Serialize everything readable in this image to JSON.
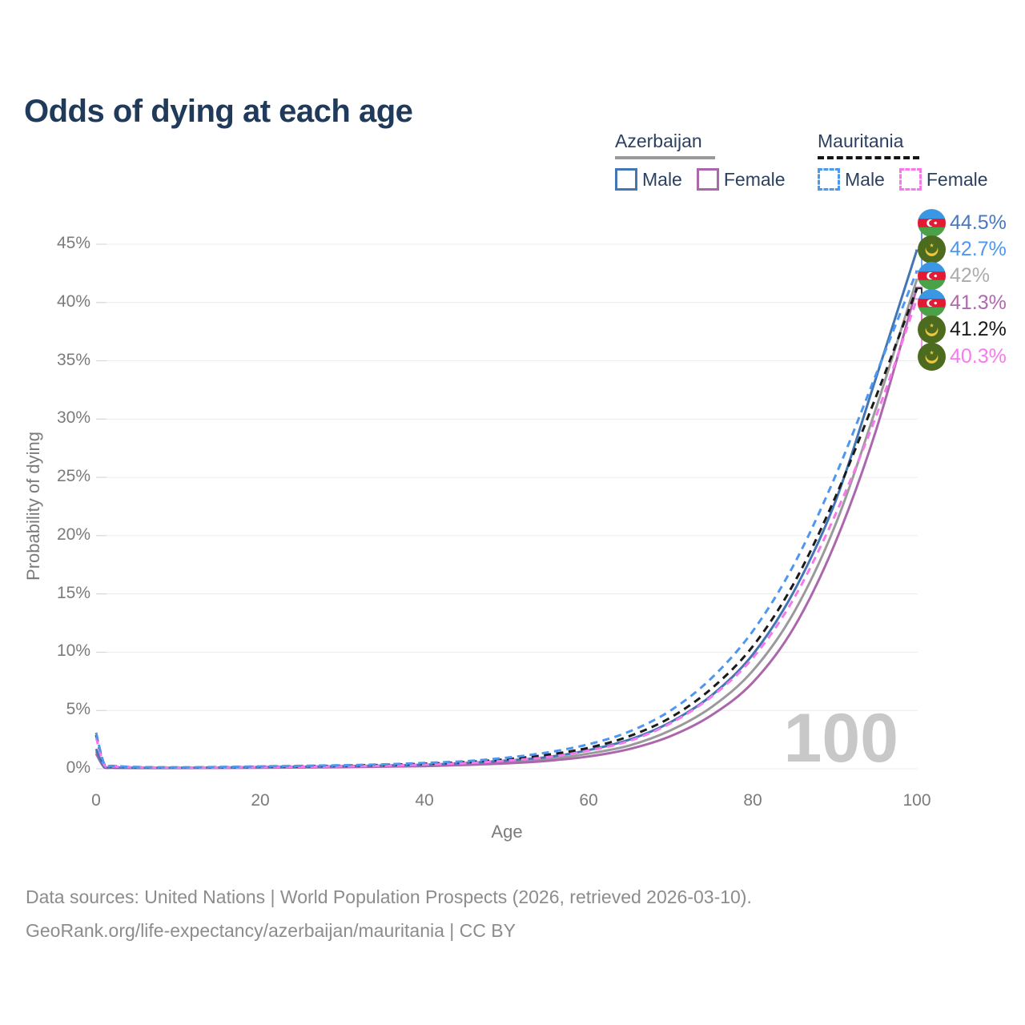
{
  "title": "Odds of dying at each age",
  "legend": {
    "groups": [
      {
        "country": "Azerbaijan",
        "line_style": "solid",
        "line_color": "#999999",
        "underline_width": 125,
        "items": [
          {
            "label": "Male",
            "color": "#4476b4",
            "dash": false
          },
          {
            "label": "Female",
            "color": "#ab67ab",
            "dash": false
          }
        ]
      },
      {
        "country": "Mauritania",
        "line_style": "dashed",
        "line_color": "#151515",
        "underline_width": 127,
        "items": [
          {
            "label": "Male",
            "color": "#4d97f0",
            "dash": true
          },
          {
            "label": "Female",
            "color": "#f678ec",
            "dash": true
          }
        ]
      }
    ]
  },
  "watermark_age": "100",
  "footer": {
    "line1": "Data sources: United Nations | World Population Prospects (2026, retrieved 2026-03-10).",
    "line2": "GeoRank.org/life-expectancy/azerbaijan/mauritania | CC BY"
  },
  "chart_data": {
    "type": "line",
    "title": "Odds of dying at each age",
    "xlabel": "Age",
    "ylabel": "Probability of dying",
    "xlim": [
      0,
      100
    ],
    "ylim": [
      0,
      45
    ],
    "grid": "horizontal",
    "legend_position": "top-right",
    "x_ticks": [
      0,
      20,
      40,
      60,
      80,
      100
    ],
    "y_ticks": [
      {
        "label": "0%",
        "value": 0
      },
      {
        "label": "5%",
        "value": 5
      },
      {
        "label": "10%",
        "value": 10
      },
      {
        "label": "15%",
        "value": 15
      },
      {
        "label": "20%",
        "value": 20
      },
      {
        "label": "25%",
        "value": 25
      },
      {
        "label": "30%",
        "value": 30
      },
      {
        "label": "35%",
        "value": 35
      },
      {
        "label": "40%",
        "value": 40
      },
      {
        "label": "45%",
        "value": 45
      }
    ],
    "ages": [
      0,
      1,
      2,
      5,
      10,
      15,
      20,
      25,
      30,
      35,
      40,
      45,
      50,
      55,
      60,
      65,
      70,
      75,
      80,
      85,
      90,
      95,
      100
    ],
    "series": [
      {
        "name": "Azerbaijan Total",
        "country": "Azerbaijan",
        "sex": "total",
        "color": "#9a9a9a",
        "dash": false,
        "flag": "azerbaijan",
        "values": [
          1.5,
          0.13,
          0.09,
          0.07,
          0.07,
          0.08,
          0.11,
          0.14,
          0.17,
          0.22,
          0.28,
          0.4,
          0.57,
          0.82,
          1.3,
          2.0,
          3.3,
          5.3,
          8.4,
          13.4,
          20.8,
          30.9,
          42.0
        ]
      },
      {
        "name": "Azerbaijan Female",
        "country": "Azerbaijan",
        "sex": "female",
        "color": "#ab67ab",
        "dash": false,
        "flag": "azerbaijan",
        "values": [
          1.3,
          0.11,
          0.08,
          0.06,
          0.06,
          0.07,
          0.09,
          0.11,
          0.14,
          0.18,
          0.23,
          0.32,
          0.46,
          0.68,
          1.05,
          1.7,
          2.8,
          4.6,
          7.4,
          12.1,
          19.3,
          29.0,
          41.3
        ]
      },
      {
        "name": "Azerbaijan Male",
        "country": "Azerbaijan",
        "sex": "male",
        "color": "#4476b4",
        "dash": false,
        "flag": "azerbaijan",
        "values": [
          1.7,
          0.15,
          0.1,
          0.08,
          0.08,
          0.1,
          0.15,
          0.18,
          0.22,
          0.28,
          0.35,
          0.5,
          0.7,
          1.0,
          1.6,
          2.5,
          4.0,
          6.3,
          9.8,
          15.2,
          22.8,
          33.5,
          44.5
        ]
      },
      {
        "name": "Mauritania Total",
        "country": "Mauritania",
        "sex": "total",
        "color": "#1a1a1a",
        "dash": true,
        "flag": "mauritania",
        "values": [
          2.9,
          0.35,
          0.22,
          0.13,
          0.11,
          0.13,
          0.17,
          0.21,
          0.26,
          0.33,
          0.43,
          0.57,
          0.82,
          1.2,
          1.8,
          2.8,
          4.4,
          6.9,
          10.5,
          15.9,
          23.2,
          31.9,
          41.2
        ]
      },
      {
        "name": "Mauritania Female",
        "country": "Mauritania",
        "sex": "female",
        "color": "#f678ec",
        "dash": true,
        "flag": "mauritania",
        "values": [
          2.7,
          0.3,
          0.2,
          0.12,
          0.1,
          0.11,
          0.14,
          0.17,
          0.21,
          0.27,
          0.36,
          0.48,
          0.7,
          1.0,
          1.55,
          2.4,
          3.9,
          6.2,
          9.5,
          14.6,
          21.7,
          30.2,
          40.3
        ]
      },
      {
        "name": "Mauritania Male",
        "country": "Mauritania",
        "sex": "male",
        "color": "#4d97f0",
        "dash": true,
        "flag": "mauritania",
        "values": [
          3.1,
          0.4,
          0.25,
          0.15,
          0.12,
          0.15,
          0.2,
          0.25,
          0.3,
          0.38,
          0.5,
          0.65,
          0.95,
          1.4,
          2.1,
          3.2,
          5.0,
          7.8,
          11.8,
          17.5,
          25.0,
          33.8,
          42.7
        ]
      }
    ],
    "end_labels": [
      {
        "text": "44.5%",
        "value": 44.5,
        "color": "#4878c0",
        "flag": "azerbaijan",
        "series": "Azerbaijan Male"
      },
      {
        "text": "42.7%",
        "value": 42.7,
        "color": "#4d97f0",
        "flag": "mauritania",
        "series": "Mauritania Male"
      },
      {
        "text": "42%",
        "value": 42.0,
        "color": "#ababab",
        "flag": "azerbaijan",
        "series": "Azerbaijan Total"
      },
      {
        "text": "41.3%",
        "value": 41.3,
        "color": "#b069b0",
        "flag": "azerbaijan",
        "series": "Azerbaijan Female"
      },
      {
        "text": "41.2%",
        "value": 41.2,
        "color": "#1a1a1a",
        "flag": "mauritania",
        "series": "Mauritania Total"
      },
      {
        "text": "40.3%",
        "value": 40.3,
        "color": "#f87af0",
        "flag": "mauritania",
        "series": "Mauritania Female"
      }
    ]
  }
}
